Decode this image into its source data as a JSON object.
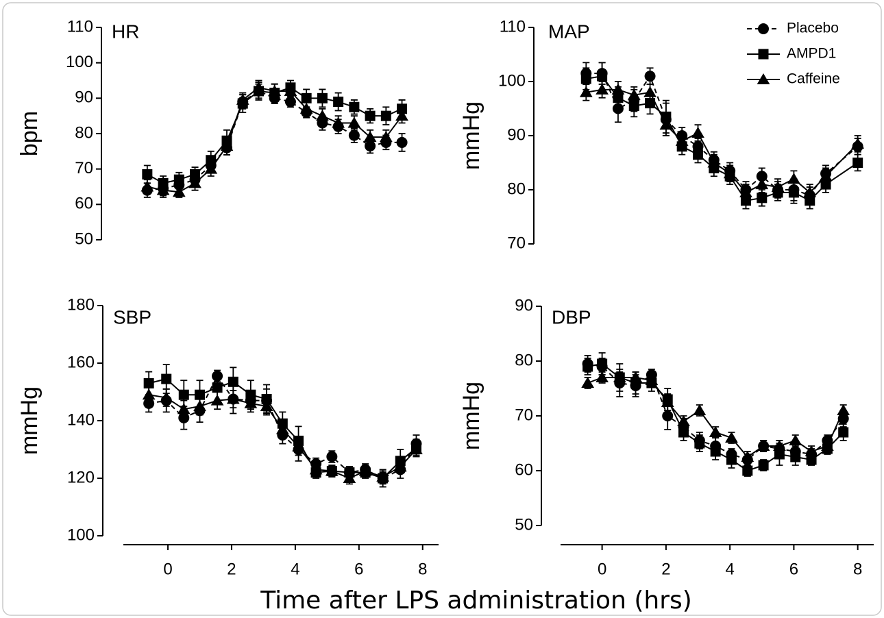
{
  "chart_data": [
    {
      "type": "line",
      "title": "HR",
      "ylabel": "bpm",
      "x": [
        -0.65,
        -0.15,
        0.35,
        0.85,
        1.35,
        1.85,
        2.35,
        2.85,
        3.35,
        3.85,
        4.35,
        4.85,
        5.35,
        5.85,
        6.35,
        6.85,
        7.35
      ],
      "xlim": [
        -1.4,
        8.5
      ],
      "ylim": [
        50,
        110
      ],
      "yticks": [
        50,
        60,
        70,
        80,
        90,
        100,
        110
      ],
      "series": [
        {
          "name": "Placebo",
          "color": "#000000",
          "marker": "circle",
          "linestyle": "dashed",
          "values": [
            64,
            64.5,
            65.5,
            67,
            71,
            76,
            89,
            92,
            90,
            89,
            86,
            83,
            82,
            79.5,
            76.5,
            77.5,
            77.5
          ],
          "errors": [
            2,
            2,
            2,
            2,
            2,
            2,
            2,
            2,
            1.5,
            1.5,
            1.5,
            2,
            2,
            2,
            2,
            2,
            2.5
          ]
        },
        {
          "name": "AMPD1",
          "color": "#000000",
          "marker": "square",
          "linestyle": "solid",
          "values": [
            68.5,
            66,
            67,
            68.5,
            72.5,
            78,
            88.5,
            92,
            91.5,
            93,
            90,
            90,
            89,
            87.5,
            85,
            85,
            87
          ],
          "errors": [
            2.5,
            2,
            2,
            2,
            2.5,
            3,
            2.5,
            2.5,
            2.5,
            2,
            2.5,
            2.5,
            2.5,
            2,
            2,
            2.5,
            2.5
          ]
        },
        {
          "name": "Caffeine",
          "color": "#000000",
          "marker": "triangle",
          "linestyle": "solid",
          "values": [
            65,
            64,
            63.5,
            66,
            70,
            76.5,
            89.5,
            93,
            92,
            92,
            87,
            85,
            83,
            83,
            79,
            79,
            85
          ],
          "errors": [
            2,
            2,
            1.5,
            2,
            2,
            2.5,
            2,
            2,
            2,
            2,
            2,
            2,
            2,
            2,
            2,
            2,
            2
          ]
        }
      ]
    },
    {
      "type": "line",
      "title": "MAP",
      "ylabel": "mmHg",
      "legend": "upper right",
      "x": [
        -0.5,
        0,
        0.5,
        1,
        1.5,
        2,
        2.5,
        3,
        3.5,
        4,
        4.5,
        5,
        5.5,
        6,
        6.5,
        7,
        8
      ],
      "xlim": [
        -1.3,
        8.5
      ],
      "ylim": [
        70,
        110
      ],
      "yticks": [
        70,
        80,
        90,
        100,
        110
      ],
      "series": [
        {
          "name": "Placebo",
          "color": "#000000",
          "marker": "circle",
          "linestyle": "dashed",
          "values": [
            101.5,
            101.5,
            95,
            96.5,
            101,
            93,
            90,
            88,
            85.5,
            83.5,
            80,
            82.5,
            80,
            80,
            79,
            83,
            88
          ],
          "errors": [
            2,
            2,
            2.5,
            2,
            1.5,
            3,
            1.5,
            1.5,
            1.5,
            1.5,
            1.5,
            1.5,
            1.5,
            2,
            1.5,
            1.5,
            1.5
          ]
        },
        {
          "name": "AMPD1",
          "color": "#000000",
          "marker": "square",
          "linestyle": "solid",
          "values": [
            100.5,
            101,
            97,
            95.5,
            96,
            93.5,
            88,
            86.5,
            84,
            82.5,
            78,
            78.5,
            79.5,
            79.5,
            78,
            81,
            85
          ],
          "errors": [
            2,
            2.5,
            2,
            2,
            2,
            3,
            1.5,
            1.5,
            1.5,
            1.5,
            1.5,
            1.5,
            1.5,
            2,
            1.5,
            1.5,
            1.5
          ]
        },
        {
          "name": "Caffeine",
          "color": "#000000",
          "marker": "triangle",
          "linestyle": "solid",
          "values": [
            98,
            98.5,
            98.5,
            97.5,
            98,
            92,
            89,
            90.5,
            85,
            83,
            79.5,
            81,
            80.5,
            82,
            79.5,
            82.5,
            88.5
          ],
          "errors": [
            1.5,
            1.5,
            1.5,
            1.5,
            1.5,
            2,
            1.5,
            1.5,
            1.5,
            1.5,
            1.5,
            1.5,
            1.5,
            1.5,
            1.5,
            1.5,
            1.5
          ]
        }
      ]
    },
    {
      "type": "line",
      "title": "SBP",
      "ylabel": "mmHg",
      "x": [
        -0.6,
        -0.05,
        0.5,
        1.0,
        1.55,
        2.05,
        2.6,
        3.1,
        3.6,
        4.1,
        4.65,
        5.15,
        5.7,
        6.2,
        6.75,
        7.3,
        7.8
      ],
      "xlim": [
        -1.4,
        8.5
      ],
      "xticks": [
        0,
        2,
        4,
        6,
        8
      ],
      "ylim": [
        100,
        180
      ],
      "yticks": [
        100,
        120,
        140,
        160,
        180
      ],
      "series": [
        {
          "name": "Placebo",
          "color": "#000000",
          "marker": "circle",
          "linestyle": "dashed",
          "values": [
            146,
            147,
            141,
            143.5,
            155.5,
            147.5,
            147,
            147,
            135,
            130,
            125,
            127.5,
            122,
            123,
            120,
            123,
            132
          ],
          "errors": [
            3,
            4,
            4,
            4,
            2,
            5,
            3,
            4,
            3,
            4,
            2,
            2,
            2,
            2,
            3,
            3,
            3
          ]
        },
        {
          "name": "AMPD1",
          "color": "#000000",
          "marker": "square",
          "linestyle": "solid",
          "values": [
            153,
            154.5,
            149,
            149,
            151.5,
            153.5,
            149,
            147.5,
            139,
            133,
            122,
            122.5,
            122,
            122,
            120,
            126,
            130.5
          ],
          "errors": [
            4,
            5,
            5,
            5,
            5,
            5,
            5,
            5,
            4,
            5,
            2,
            2,
            2,
            2,
            2,
            4,
            3
          ]
        },
        {
          "name": "Caffeine",
          "color": "#000000",
          "marker": "triangle",
          "linestyle": "solid",
          "values": [
            149,
            148,
            144,
            145,
            147,
            147.5,
            146,
            145,
            137,
            131,
            123,
            122.5,
            120,
            122.5,
            120.5,
            124,
            130
          ],
          "errors": [
            3,
            3,
            3,
            3,
            3,
            3,
            3,
            3,
            3,
            3,
            2,
            2,
            2,
            2,
            2,
            2,
            2
          ]
        }
      ]
    },
    {
      "type": "line",
      "title": "DBP",
      "ylabel": "mmHg",
      "x": [
        -0.45,
        0,
        0.55,
        1.05,
        1.55,
        2.05,
        2.55,
        3.05,
        3.55,
        4.05,
        4.55,
        5.05,
        5.55,
        6.05,
        6.55,
        7.05,
        7.55
      ],
      "xlim": [
        -1.3,
        8.5
      ],
      "xticks": [
        0,
        2,
        4,
        6,
        8
      ],
      "ylim": [
        50,
        90
      ],
      "yticks": [
        50,
        60,
        70,
        80,
        90
      ],
      "series": [
        {
          "name": "Placebo",
          "color": "#000000",
          "marker": "circle",
          "linestyle": "dashed",
          "values": [
            79.5,
            79,
            76,
            75.5,
            77.5,
            70,
            68,
            65.5,
            64.5,
            63,
            62,
            64.5,
            64,
            63.5,
            63,
            65.5,
            69.5
          ],
          "errors": [
            1.5,
            1.5,
            2.5,
            2,
            1,
            2.5,
            1.5,
            1.5,
            1.5,
            1,
            1,
            1,
            1.5,
            1.5,
            1,
            1,
            1.5
          ]
        },
        {
          "name": "AMPD1",
          "color": "#000000",
          "marker": "square",
          "linestyle": "solid",
          "values": [
            79,
            79.5,
            77,
            76,
            76,
            73,
            67,
            65,
            63.5,
            62,
            60,
            61,
            63,
            62.5,
            62,
            64,
            67
          ],
          "errors": [
            1.5,
            2,
            2.5,
            2,
            1.5,
            2,
            1.5,
            1.5,
            1.5,
            1.5,
            1,
            1,
            2,
            1.5,
            1,
            1,
            1.5
          ]
        },
        {
          "name": "Caffeine",
          "color": "#000000",
          "marker": "triangle",
          "linestyle": "solid",
          "values": [
            76,
            77,
            77,
            77,
            76.5,
            72.5,
            69,
            71,
            67,
            66,
            62.5,
            64.5,
            64.5,
            65.5,
            63.5,
            64.5,
            71
          ],
          "errors": [
            1,
            1,
            1,
            1,
            1,
            1.5,
            1,
            1,
            1,
            1,
            1,
            1,
            1,
            1,
            1,
            1,
            1
          ]
        }
      ]
    }
  ],
  "figure": {
    "xlabel": "Time after LPS administration (hrs)"
  }
}
